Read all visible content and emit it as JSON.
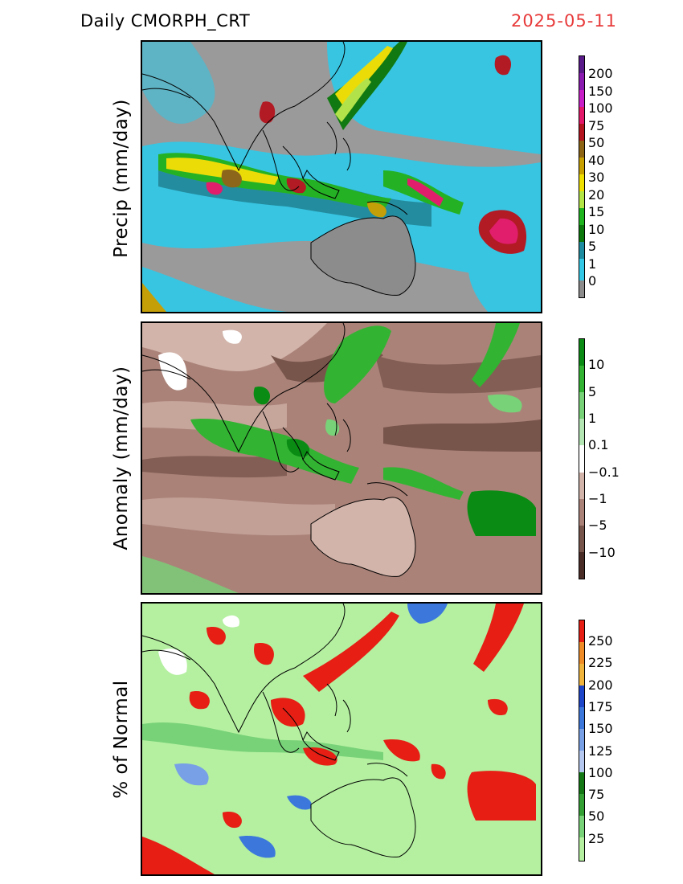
{
  "header": {
    "product": "Daily  CMORPH_CRT",
    "date": "2025-05-11"
  },
  "panels": {
    "precip": {
      "ylabel": "Precip  (mm/day)",
      "legend_labels": [
        "200",
        "150",
        "100",
        "75",
        "50",
        "40",
        "30",
        "20",
        "15",
        "10",
        "5",
        "1",
        "0"
      ],
      "legend_colors": [
        "#5a1a8a",
        "#8a1ab0",
        "#c81ec8",
        "#e4186a",
        "#b4141e",
        "#8c6414",
        "#c8a000",
        "#f0e000",
        "#b4e646",
        "#1eb41e",
        "#0a780a",
        "#1e8ca0",
        "#32c8e6",
        "#8c8c8c"
      ],
      "background_color": "#a0a0a0"
    },
    "anomaly": {
      "ylabel": "Anomaly  (mm/day)",
      "legend_labels": [
        "10",
        "5",
        "1",
        "0.1",
        "−0.1",
        "−1",
        "−5",
        "−10"
      ],
      "legend_colors": [
        "#0a8c14",
        "#32b432",
        "#78d278",
        "#b4e6b4",
        "#ffffff",
        "#d2b4aa",
        "#aa8278",
        "#78554b",
        "#4b2d28"
      ],
      "background_color": "#b08a7e"
    },
    "percent": {
      "ylabel": "%  of  Normal",
      "legend_labels": [
        "250",
        "225",
        "200",
        "175",
        "150",
        "125",
        "100",
        "75",
        "50",
        "25"
      ],
      "legend_colors": [
        "#e61e14",
        "#f08c28",
        "#f0b43c",
        "#1e46c8",
        "#3c78dc",
        "#78a0e6",
        "#b4c8f0",
        "#147814",
        "#32a032",
        "#78d278",
        "#b4f0a0"
      ],
      "background_color": "#b4f0a0"
    }
  }
}
